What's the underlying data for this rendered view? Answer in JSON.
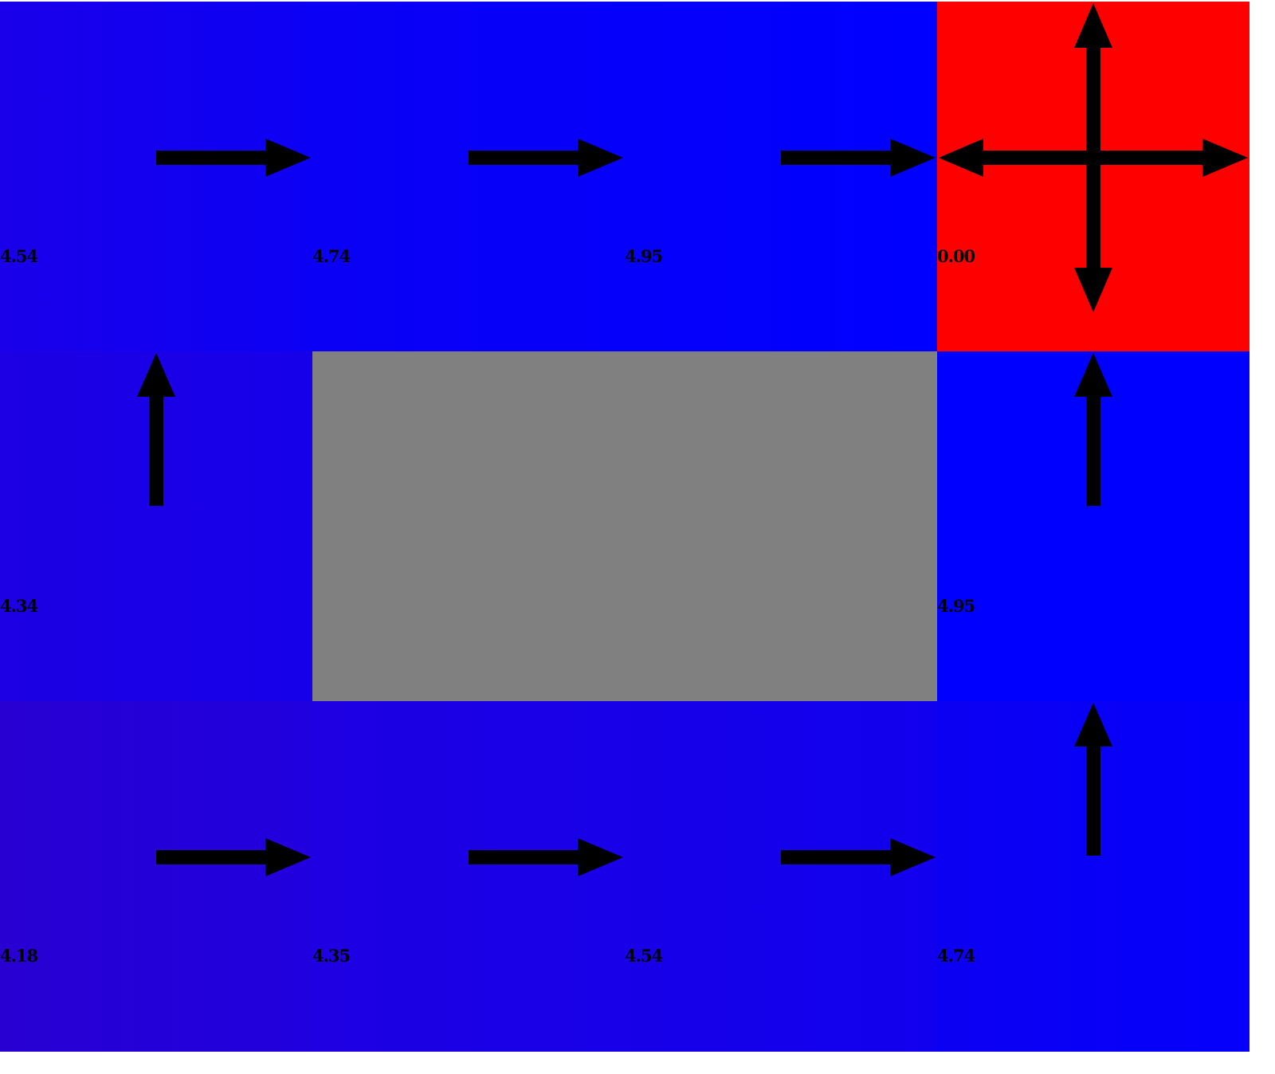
{
  "grid": {
    "rows": 3,
    "cols": 4,
    "cells": [
      {
        "id": "r0c0",
        "value": "4.54",
        "color": "#1800ec",
        "policy": [
          "right"
        ]
      },
      {
        "id": "r0c1",
        "value": "4.74",
        "color": "#0900f6",
        "policy": [
          "right"
        ]
      },
      {
        "id": "r0c2",
        "value": "4.95",
        "color": "#0000ff",
        "policy": [
          "right"
        ]
      },
      {
        "id": "r0c3",
        "value": "0.00",
        "color": "#ff0000",
        "policy": [
          "up",
          "down",
          "left",
          "right"
        ],
        "terminal": true
      },
      {
        "id": "r1c0",
        "value": "4.34",
        "color": "#1e00e2",
        "policy": [
          "up"
        ]
      },
      {
        "id": "r1c1",
        "wall": true,
        "color": "#808080"
      },
      {
        "id": "r1c2",
        "wall": true,
        "color": "#808080"
      },
      {
        "id": "r1c3",
        "value": "4.95",
        "color": "#0000ff",
        "policy": [
          "up"
        ]
      },
      {
        "id": "r2c0",
        "value": "4.18",
        "color": "#2800d2",
        "policy": [
          "right"
        ]
      },
      {
        "id": "r2c1",
        "value": "4.35",
        "color": "#1d00e4",
        "policy": [
          "right"
        ]
      },
      {
        "id": "r2c2",
        "value": "4.54",
        "color": "#1300ee",
        "policy": [
          "right"
        ]
      },
      {
        "id": "r2c3",
        "value": "4.74",
        "color": "#0800f8",
        "policy": [
          "up"
        ]
      }
    ]
  }
}
